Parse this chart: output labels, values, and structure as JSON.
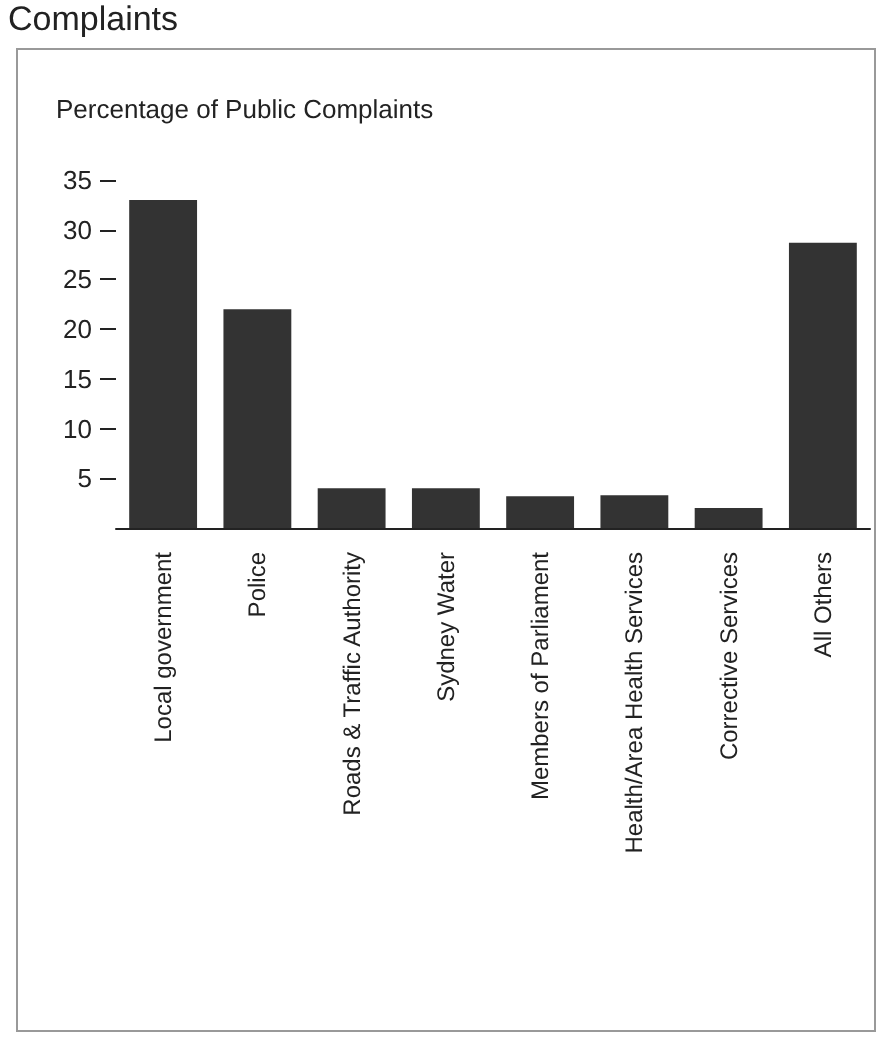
{
  "chart_data": {
    "type": "bar",
    "title": "Complaints",
    "ylabel": "Percentage of Public Complaints",
    "categories": [
      "Local government",
      "Police",
      "Roads & Traffic Authority",
      "Sydney Water",
      "Members of Parliament",
      "Health/Area Health Services",
      "Corrective Services",
      "All Others"
    ],
    "values": [
      33,
      22,
      4,
      4,
      3.2,
      3.3,
      2,
      28.7
    ],
    "color": "#333333",
    "ylim": [
      0,
      35
    ],
    "yticks": [
      5,
      10,
      15,
      20,
      25,
      30,
      35
    ],
    "grid": false
  }
}
